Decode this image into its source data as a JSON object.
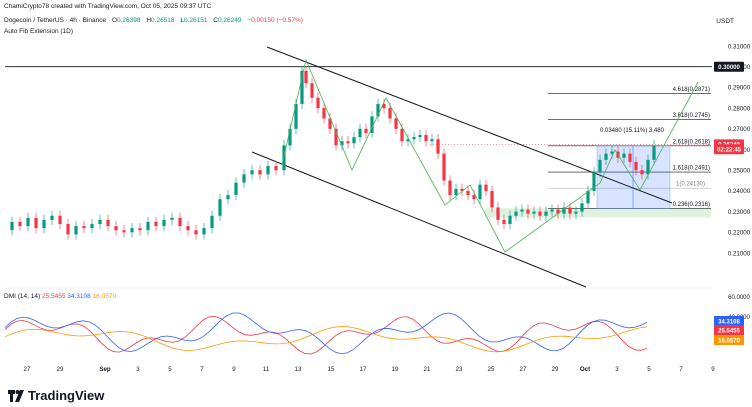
{
  "header": {
    "created": "ChamiCrypto78 created with TradingView.com, Oct 05, 2025 09:37 UTC",
    "symbol": "Dogecoin / TetherUS · 4h · Binance",
    "o_label": "O",
    "o": "0.26398",
    "h_label": "H",
    "h": "0.26518",
    "l_label": "L",
    "l": "0.26151",
    "c_label": "C",
    "c": "0.26249",
    "change": "−0.00150 (−0.57%)",
    "indicator": "Auto Fib Extension (1D)",
    "currency": "USDT"
  },
  "dmi": {
    "label": "DMI (14, 14)",
    "plus": "25.5455",
    "minus": "34.3108",
    "adx": "16.0570"
  },
  "brand": "TradingView",
  "colors": {
    "up": "#089981",
    "down": "#f23645",
    "plus_di": "#f23645",
    "minus_di": "#2962ff",
    "adx": "#ff9800",
    "zigzag": "#4caf50",
    "box": "#2962ff"
  },
  "chart_data": {
    "type": "candlestick",
    "ylim": [
      0.2,
      0.31
    ],
    "y_ticks": [
      "0.31000",
      "0.30000",
      "0.29000",
      "0.28000",
      "0.27000",
      "0.26000",
      "0.25000",
      "0.24000",
      "0.23000",
      "0.22000",
      "0.21000"
    ],
    "x_ticks": [
      "27",
      "29",
      "Sep",
      "3",
      "5",
      "7",
      "9",
      "11",
      "13",
      "15",
      "17",
      "19",
      "21",
      "23",
      "25",
      "27",
      "29",
      "Oct",
      "3",
      "5",
      "7",
      "9"
    ],
    "price_markers": [
      {
        "label": "0.30000",
        "value": 0.3,
        "style": "dark"
      },
      {
        "label": "0.26249",
        "value": 0.26249,
        "style": "red"
      },
      {
        "label": "02:22:45",
        "value": 0.2601,
        "style": "red-sub"
      }
    ],
    "fib_levels": [
      {
        "label": "4.618(0.2871)",
        "value": 0.2871
      },
      {
        "label": "3.618(0.2745)",
        "value": 0.2745
      },
      {
        "label": "2.618(0.2618)",
        "value": 0.2618
      },
      {
        "label": "1.618(0.2491)",
        "value": 0.2491
      },
      {
        "label": "1(0.24130)",
        "value": 0.2413
      },
      {
        "label": "0.236(0.2316)",
        "value": 0.2316
      }
    ],
    "measure_label": "0.03480 (15.11%) 3,480",
    "dmi_axis": [
      "60.0000",
      "40.0000"
    ],
    "dmi_values": {
      "plus_di": 25.5455,
      "minus_di": 34.3108,
      "adx": 16.057
    }
  }
}
